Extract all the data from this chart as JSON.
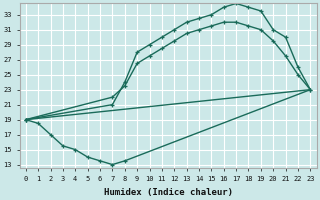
{
  "xlabel": "Humidex (Indice chaleur)",
  "bg_color": "#cce8e8",
  "grid_color": "#ffffff",
  "line_color": "#1a6b5a",
  "xlim": [
    -0.5,
    23.5
  ],
  "ylim": [
    12.5,
    34.5
  ],
  "xticks": [
    0,
    1,
    2,
    3,
    4,
    5,
    6,
    7,
    8,
    9,
    10,
    11,
    12,
    13,
    14,
    15,
    16,
    17,
    18,
    19,
    20,
    21,
    22,
    23
  ],
  "yticks": [
    13,
    15,
    17,
    19,
    21,
    23,
    25,
    27,
    29,
    31,
    33
  ],
  "curve_upper_x": [
    0,
    7,
    8,
    9,
    10,
    11,
    12,
    13,
    14,
    15,
    16,
    17,
    18,
    19,
    20,
    21,
    22,
    23
  ],
  "curve_upper_y": [
    19,
    21,
    24,
    28,
    29,
    30,
    31,
    32,
    32.5,
    33,
    34,
    34.5,
    34,
    33.5,
    31,
    30,
    26,
    23
  ],
  "curve_mid_x": [
    0,
    7,
    8,
    9,
    10,
    11,
    12,
    13,
    14,
    15,
    16,
    17,
    18,
    19,
    20,
    21,
    22,
    23
  ],
  "curve_mid_y": [
    19,
    22,
    23.5,
    26.5,
    27.5,
    28.5,
    29.5,
    30.5,
    31,
    31.5,
    32,
    32,
    31.5,
    31,
    29.5,
    27.5,
    25,
    23
  ],
  "curve_lower_x": [
    0,
    1,
    2,
    3,
    4,
    5,
    6,
    7,
    8,
    23
  ],
  "curve_lower_y": [
    19,
    18.5,
    17,
    15.5,
    15,
    14,
    13.5,
    13,
    13.5,
    23
  ]
}
